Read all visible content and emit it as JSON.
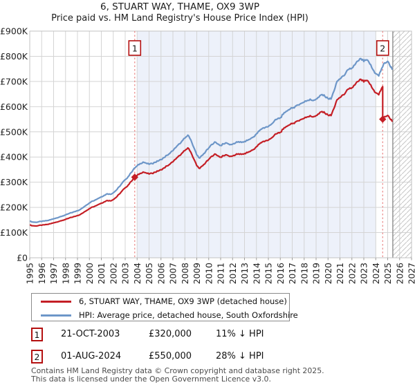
{
  "header": {
    "title": "6, STUART WAY, THAME, OX9 3WP",
    "subtitle": "Price paid vs. HM Land Registry's House Price Index (HPI)"
  },
  "colors": {
    "price_line": "#c41e25",
    "hpi_line": "#6d96c8",
    "sale_dash_line": "#e87c7c",
    "marker_box_border": "#b40f0f",
    "owned_period_shade": "#edf1fa",
    "gridline": "#d4d4d4",
    "plot_border": "#c2c2c2",
    "hatch": "#c6c6c6",
    "hatch_boundary": "#8c8c8c",
    "axis_text": "#222222"
  },
  "legend": {
    "items": [
      {
        "label": "6, STUART WAY, THAME, OX9 3WP (detached house)",
        "color": "#c41e25"
      },
      {
        "label": "HPI: Average price, detached house, South Oxfordshire",
        "color": "#6d96c8"
      }
    ]
  },
  "transactions": [
    {
      "num": "1",
      "date": "21-OCT-2003",
      "price": "£320,000",
      "hpi_diff": "11% ↓ HPI"
    },
    {
      "num": "2",
      "date": "01-AUG-2024",
      "price": "£550,000",
      "hpi_diff": "28% ↓ HPI"
    }
  ],
  "footer": {
    "line1": "Contains HM Land Registry data © Crown copyright and database right 2025.",
    "line2": "This data is licensed under the Open Government Licence v3.0."
  },
  "chart_data": {
    "type": "line",
    "title": "6, STUART WAY, THAME, OX9 3WP",
    "subtitle": "Price paid vs. HM Land Registry's House Price Index (HPI)",
    "x_axis": {
      "min": 1995,
      "max": 2027,
      "tick_labels": [
        "1995",
        "1996",
        "1997",
        "1998",
        "1999",
        "2000",
        "2001",
        "2002",
        "2003",
        "2004",
        "2005",
        "2006",
        "2007",
        "2008",
        "2009",
        "2010",
        "2011",
        "2012",
        "2013",
        "2014",
        "2015",
        "2016",
        "2017",
        "2018",
        "2019",
        "2020",
        "2021",
        "2022",
        "2023",
        "2024",
        "2025",
        "2026",
        "2027"
      ]
    },
    "y_axis": {
      "min_gbp_thousands": 0,
      "max_gbp_thousands": 900,
      "tick_step_gbp_thousands": 100,
      "tick_labels": [
        "£0",
        "£100K",
        "£200K",
        "£300K",
        "£400K",
        "£500K",
        "£600K",
        "£700K",
        "£800K",
        "£900K"
      ]
    },
    "owned_period_shade_years": [
      2004,
      2024
    ],
    "future_hatch_start_year": 2025.43,
    "series_hpi": {
      "name": "HPI: Average price, detached house, South Oxfordshire",
      "units": "GBP thousands",
      "x_start_year": 1995,
      "x_step_years": 0.25,
      "values": [
        145,
        142,
        141,
        143,
        144,
        146,
        148,
        151,
        155,
        158,
        162,
        166,
        170,
        175,
        179,
        183,
        187,
        192,
        200,
        209,
        218,
        225,
        230,
        236,
        242,
        248,
        254,
        252,
        258,
        268,
        282,
        297,
        310,
        322,
        338,
        355,
        365,
        374,
        380,
        376,
        371,
        374,
        379,
        384,
        390,
        398,
        407,
        415,
        425,
        438,
        452,
        463,
        475,
        487,
        468,
        438,
        408,
        396,
        408,
        422,
        436,
        450,
        460,
        452,
        446,
        452,
        456,
        449,
        451,
        456,
        461,
        458,
        462,
        466,
        472,
        480,
        492,
        504,
        514,
        518,
        521,
        530,
        543,
        551,
        556,
        570,
        582,
        588,
        594,
        601,
        607,
        613,
        618,
        624,
        630,
        624,
        630,
        638,
        648,
        640,
        632,
        630,
        662,
        700,
        710,
        722,
        735,
        748,
        753,
        766,
        781,
        791,
        779,
        786,
        770,
        748,
        731,
        722,
        752,
        774,
        780,
        757
      ],
      "end_point": {
        "x_year": 2025.42,
        "value": 750
      }
    },
    "series_price_indexed": {
      "name": "6, STUART WAY, THAME, OX9 3WP (detached house)",
      "note": "price-paid line indexed to HPI",
      "ratio_before_second_sale": 0.896,
      "ratio_after_second_sale": 0.7246,
      "break_year": 2024.58
    },
    "sale_markers": [
      {
        "num": "1",
        "x_year": 2003.8,
        "price_gbp_thousands": 320
      },
      {
        "num": "2",
        "x_year": 2024.58,
        "price_gbp_thousands": 550
      }
    ]
  }
}
